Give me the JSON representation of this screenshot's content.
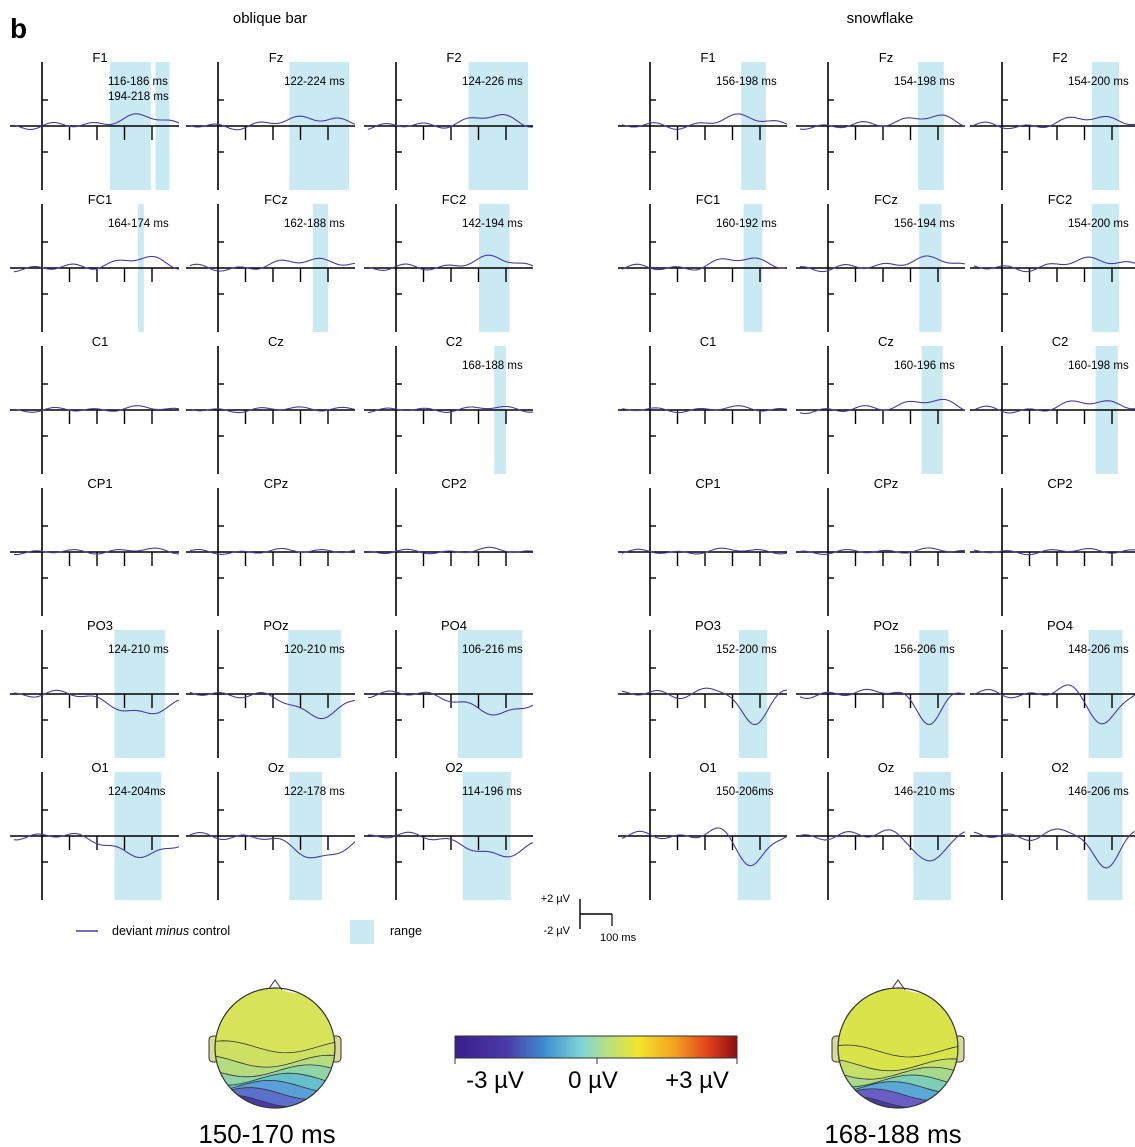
{
  "panel_label": "b",
  "groups": [
    {
      "title": "oblique bar",
      "rows": [
        {
          "cells": [
            {
              "label": "F1",
              "ranges": [
                "116-186 ms",
                "194-218 ms"
              ],
              "wave": "front"
            },
            {
              "label": "Fz",
              "ranges": [
                "122-224 ms"
              ],
              "wave": "front"
            },
            {
              "label": "F2",
              "ranges": [
                "124-226 ms"
              ],
              "wave": "front"
            }
          ]
        },
        {
          "cells": [
            {
              "label": "FC1",
              "ranges": [
                "164-174 ms"
              ],
              "wave": "front"
            },
            {
              "label": "FCz",
              "ranges": [
                "162-188 ms"
              ],
              "wave": "front"
            },
            {
              "label": "FC2",
              "ranges": [
                "142-194 ms"
              ],
              "wave": "front"
            }
          ]
        },
        {
          "cells": [
            {
              "label": "C1",
              "ranges": [],
              "wave": "flat"
            },
            {
              "label": "Cz",
              "ranges": [],
              "wave": "flat"
            },
            {
              "label": "C2",
              "ranges": [
                "168-188 ms"
              ],
              "wave": "flat"
            }
          ]
        },
        {
          "cells": [
            {
              "label": "CP1",
              "ranges": [],
              "wave": "flat"
            },
            {
              "label": "CPz",
              "ranges": [],
              "wave": "flat"
            },
            {
              "label": "CP2",
              "ranges": [],
              "wave": "flat"
            }
          ]
        },
        {
          "cells": [
            {
              "label": "PO3",
              "ranges": [
                "124-210 ms"
              ],
              "wave": "neg"
            },
            {
              "label": "POz",
              "ranges": [
                "120-210 ms"
              ],
              "wave": "neg"
            },
            {
              "label": "PO4",
              "ranges": [
                "106-216 ms"
              ],
              "wave": "neg"
            }
          ]
        },
        {
          "cells": [
            {
              "label": "O1",
              "ranges": [
                "124-204ms"
              ],
              "wave": "neg"
            },
            {
              "label": "Oz",
              "ranges": [
                "122-178 ms"
              ],
              "wave": "neg"
            },
            {
              "label": "O2",
              "ranges": [
                "114-196 ms"
              ],
              "wave": "neg"
            }
          ]
        }
      ]
    },
    {
      "title": "snowflake",
      "rows": [
        {
          "cells": [
            {
              "label": "F1",
              "ranges": [
                "156-198 ms"
              ],
              "wave": "front"
            },
            {
              "label": "Fz",
              "ranges": [
                "154-198 ms"
              ],
              "wave": "front"
            },
            {
              "label": "F2",
              "ranges": [
                "154-200 ms"
              ],
              "wave": "front"
            }
          ]
        },
        {
          "cells": [
            {
              "label": "FC1",
              "ranges": [
                "160-192 ms"
              ],
              "wave": "front"
            },
            {
              "label": "FCz",
              "ranges": [
                "156-194 ms"
              ],
              "wave": "front"
            },
            {
              "label": "FC2",
              "ranges": [
                "154-200 ms"
              ],
              "wave": "front"
            }
          ]
        },
        {
          "cells": [
            {
              "label": "C1",
              "ranges": [],
              "wave": "flat"
            },
            {
              "label": "Cz",
              "ranges": [
                "160-196 ms"
              ],
              "wave": "front"
            },
            {
              "label": "C2",
              "ranges": [
                "160-198 ms"
              ],
              "wave": "front"
            }
          ]
        },
        {
          "cells": [
            {
              "label": "CP1",
              "ranges": [],
              "wave": "flat"
            },
            {
              "label": "CPz",
              "ranges": [],
              "wave": "flat"
            },
            {
              "label": "CP2",
              "ranges": [],
              "wave": "flat"
            }
          ]
        },
        {
          "cells": [
            {
              "label": "PO3",
              "ranges": [
                "152-200 ms"
              ],
              "wave": "negsharp"
            },
            {
              "label": "POz",
              "ranges": [
                "156-206 ms"
              ],
              "wave": "negsharp"
            },
            {
              "label": "PO4",
              "ranges": [
                "148-206 ms"
              ],
              "wave": "negsharp"
            }
          ]
        },
        {
          "cells": [
            {
              "label": "O1",
              "ranges": [
                "150-206ms"
              ],
              "wave": "negsharp"
            },
            {
              "label": "Oz",
              "ranges": [
                "146-210 ms"
              ],
              "wave": "negsharp"
            },
            {
              "label": "O2",
              "ranges": [
                "146-206 ms"
              ],
              "wave": "negsharp"
            }
          ]
        }
      ]
    }
  ],
  "legend": {
    "line_label_prefix": "deviant ",
    "line_label_italic": "minus",
    "line_label_suffix": " control",
    "range_label": "range"
  },
  "scale_bar": {
    "pos": "+2 µV",
    "neg": "-2 µV",
    "time": "100 ms"
  },
  "colorbar": {
    "labels": [
      "-3 µV",
      "0 µV",
      "+3 µV"
    ]
  },
  "topomaps": [
    {
      "caption": "150-170 ms"
    },
    {
      "caption": "168-188 ms"
    }
  ],
  "colors": {
    "trace": "#4a3aa8",
    "range": "#c9e9f3",
    "axis": "#000000"
  },
  "chart_data": {
    "type": "line",
    "xlabel": "",
    "ylabel": "",
    "scale": {
      "time_ms": 100,
      "amplitude_uV": 2
    },
    "series": [
      {
        "name": "deviant minus control"
      }
    ],
    "note_ranges": "shaded range per electrode given in groups[].rows[].cells[].ranges"
  }
}
